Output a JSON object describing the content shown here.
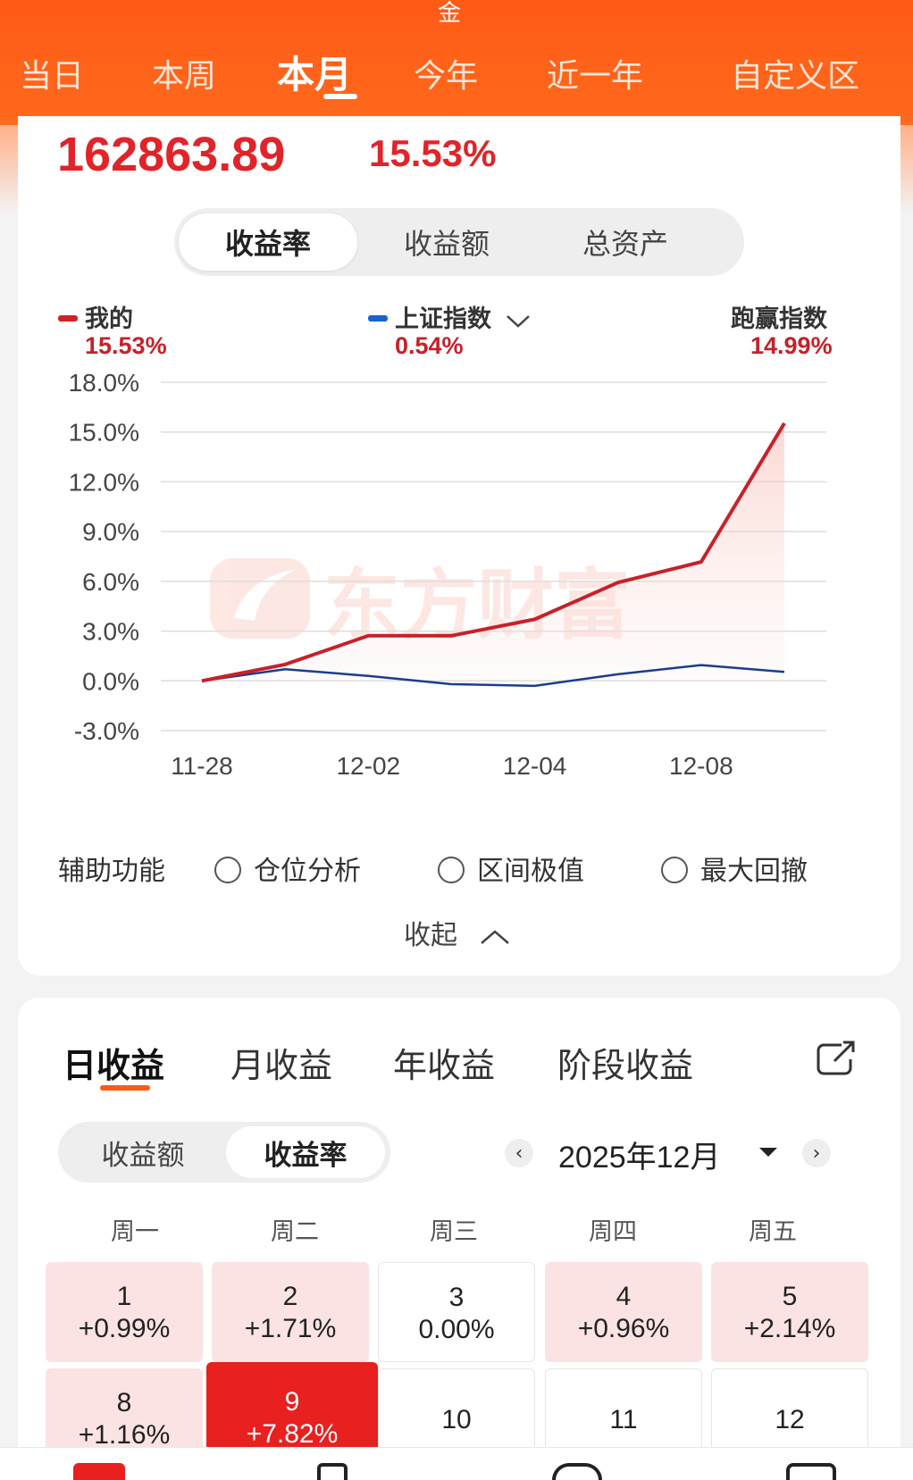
{
  "header": {
    "top_fragment": "金",
    "period_tabs": [
      "当日",
      "本周",
      "本月",
      "今年",
      "近一年",
      "自定义区"
    ],
    "active_period": "本月"
  },
  "summary": {
    "total": "162863.89",
    "rate": "15.53%"
  },
  "metric_tabs": [
    "收益率",
    "收益额",
    "总资产"
  ],
  "legend": {
    "mine_label": "我的",
    "mine_value": "15.53%",
    "index_label": "上证指数",
    "index_value": "0.54%",
    "beat_label": "跑赢指数",
    "beat_value": "14.99%"
  },
  "watermark": "东方财富",
  "chart_data": {
    "type": "line",
    "x": [
      "11-28",
      "12-01",
      "12-02",
      "12-03",
      "12-04",
      "12-05",
      "12-08",
      "12-09"
    ],
    "x_tick_labels": [
      "11-28",
      "12-02",
      "12-04",
      "12-08"
    ],
    "y_tick_labels": [
      "18.0%",
      "15.0%",
      "12.0%",
      "9.0%",
      "6.0%",
      "3.0%",
      "0.0%",
      "-3.0%"
    ],
    "ylim": [
      -3.0,
      18.0
    ],
    "grid": true,
    "series": [
      {
        "name": "我的",
        "color": "#c8202a",
        "values": [
          0.0,
          0.99,
          2.72,
          2.72,
          3.71,
          5.93,
          7.17,
          15.53
        ]
      },
      {
        "name": "上证指数",
        "color": "#1a3d8f",
        "values": [
          0.0,
          0.7,
          0.3,
          -0.2,
          -0.3,
          0.4,
          0.95,
          0.54
        ]
      }
    ]
  },
  "aux": {
    "label": "辅助功能",
    "options": [
      "仓位分析",
      "区间极值",
      "最大回撤"
    ],
    "collapse": "收起"
  },
  "returns_tabs": [
    "日收益",
    "月收益",
    "年收益",
    "阶段收益"
  ],
  "amount_toggle": [
    "收益额",
    "收益率"
  ],
  "calendar": {
    "month": "2025年12月",
    "weekdays": [
      "周一",
      "周二",
      "周三",
      "周四",
      "周五"
    ],
    "row1": [
      {
        "day": "1",
        "pct": "+0.99%"
      },
      {
        "day": "2",
        "pct": "+1.71%"
      },
      {
        "day": "3",
        "pct": "0.00%"
      },
      {
        "day": "4",
        "pct": "+0.96%"
      },
      {
        "day": "5",
        "pct": "+2.14%"
      }
    ],
    "row2": [
      {
        "day": "8",
        "pct": "+1.16%"
      },
      {
        "day": "9",
        "pct": "+7.82%"
      },
      {
        "day": "10",
        "pct": ""
      },
      {
        "day": "11",
        "pct": ""
      },
      {
        "day": "12",
        "pct": ""
      }
    ]
  },
  "colors": {
    "header": "#ff5a17",
    "up": "#e0242a",
    "index": "#1a3d8f"
  }
}
